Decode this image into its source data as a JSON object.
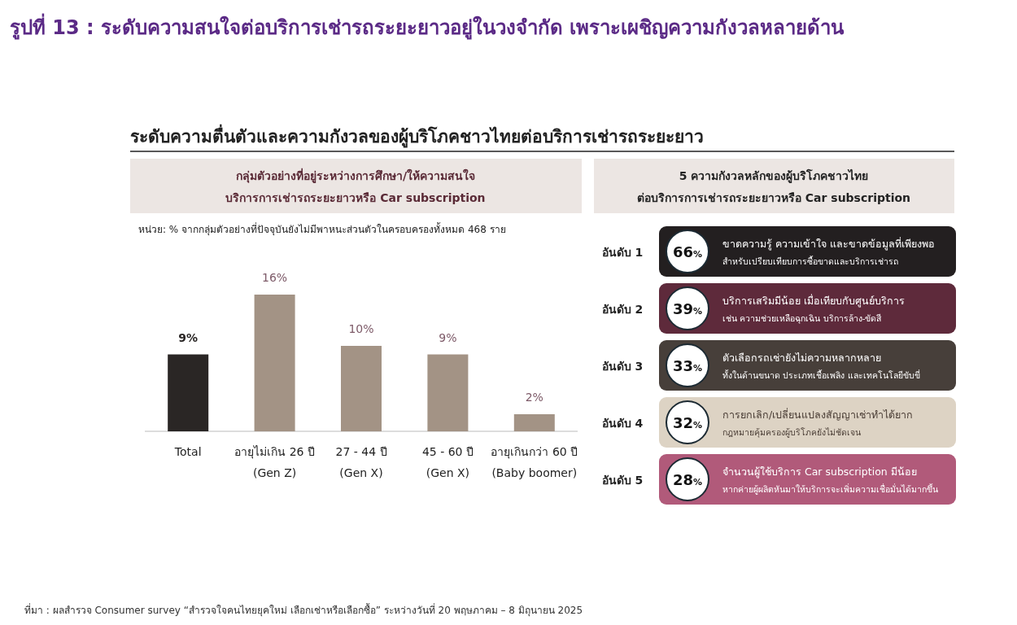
{
  "chart_data": [
    {
      "type": "bar",
      "title": "รูปที่ 13 : ระดับความสนใจต่อบริการเช่ารถระยะยาวอยู่ในวงจำกัด เพราะเผชิญความกังวลหลายด้าน",
      "subtitle": "ระดับความตื่นตัวและความกังวลของผู้บริโภคชาวไทยต่อบริการเช่ารถระยะยาว",
      "annotations": [
        "กลุ่มตัวอย่างที่อยู่ระหว่างการศึกษา/ให้ความสนใจ\nบริการการเช่ารถระยะยาวหรือ Car subscription",
        "หน่วย: % จากกลุ่มตัวอย่างที่ปัจจุบันยังไม่มีพาหนะส่วนตัวในครอบครองทั้งหมด 468 ราย",
        "ที่มา : ผลสำรวจ Consumer survey “สำรวจใจคนไทยยุคใหม่ เลือกเช่าหรือเลือกซื้อ” ระหว่างวันที่ 20 พฤษภาคม – 8 มิถุนายน 2025"
      ],
      "categories": [
        "Total",
        "อายุไม่เกิน 26 ปี\n(Gen Z)",
        "27 - 44 ปี\n(Gen X)",
        "45 - 60 ปี\n(Gen X)",
        "อายุเกินกว่า 60 ปี\n(Baby boomer)"
      ],
      "values": [
        9,
        16,
        10,
        9,
        2
      ],
      "colors": [
        "#2a2625",
        "#a39385",
        "#a39385",
        "#a39385",
        "#a39385"
      ],
      "value_labels": [
        "9%",
        "16%",
        "10%",
        "9%",
        "2%"
      ]
    },
    {
      "type": "other",
      "title": "5 ความกังวลหลักของผู้บริโภคชาวไทย\nต่อบริการการเช่ารถระยะยาวหรือ Car subscription",
      "categories": [
        "อันดับ 1",
        "อันดับ 2",
        "อันดับ 3",
        "อันดับ 4",
        "อันดับ 5"
      ],
      "values": [
        66,
        39,
        33,
        32,
        28
      ],
      "value_labels": [
        "66%",
        "39%",
        "33%",
        "32%",
        "28%"
      ],
      "colors": [
        "#231f20",
        "#5e2a3b",
        "#473f3a",
        "#ddd3c4",
        "#b15a7a"
      ],
      "annotations": [
        "ขาดความรู้ ความเข้าใจ และขาดข้อมูลที่เพียงพอ\nสำหรับเปรียบเทียบการซื้อขาดและบริการเช่ารถ",
        "บริการเสริมมีน้อย เมื่อเทียบกับศูนย์บริการ\nเช่น ความช่วยเหลือฉุกเฉิน บริการล้าง-ขัดสี",
        "ตัวเลือกรถเช่ายังไม่ความหลากหลาย\nทั้งในด้านขนาด ประเภทเชื้อเพลิง และเทคโนโลยีขับขี่",
        "การยกเลิก/เปลี่ยนแปลงสัญญาเช่าทำได้ยาก\nกฎหมายคุ้มครองผู้บริโภคยังไม่ชัดเจน",
        "จำนวนผู้ใช้บริการ Car subscription มีน้อย\nหากค่ายผู้ผลิตหันมาให้บริการจะเพิ่มความเชื่อมั่นได้มากขึ้น"
      ]
    }
  ]
}
